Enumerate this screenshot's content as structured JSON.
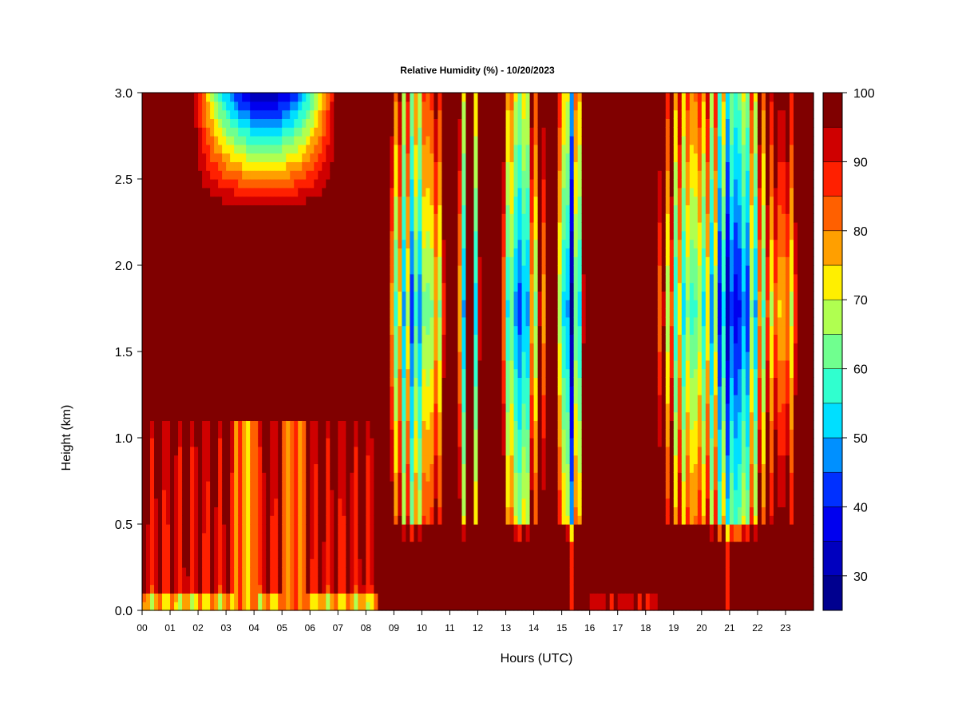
{
  "chart_data": {
    "type": "heatmap",
    "title": "Relative Humidity (%) - 10/20/2023",
    "xlabel": "Hours (UTC)",
    "ylabel": "Height (km)",
    "xlim": [
      0,
      24
    ],
    "ylim": [
      0,
      3.0
    ],
    "x_ticks": [
      0,
      1,
      2,
      3,
      4,
      5,
      6,
      7,
      8,
      9,
      10,
      11,
      12,
      13,
      14,
      15,
      16,
      17,
      18,
      19,
      20,
      21,
      22,
      23
    ],
    "x_tick_labels": [
      "00",
      "01",
      "02",
      "03",
      "04",
      "05",
      "06",
      "07",
      "08",
      "09",
      "10",
      "11",
      "12",
      "13",
      "14",
      "15",
      "16",
      "17",
      "18",
      "19",
      "20",
      "21",
      "22",
      "23"
    ],
    "y_ticks": [
      0.0,
      0.5,
      1.0,
      1.5,
      2.0,
      2.5,
      3.0
    ],
    "y_tick_labels": [
      "0.0",
      "0.5",
      "1.0",
      "1.5",
      "2.0",
      "2.5",
      "3.0"
    ],
    "colorbar": {
      "range": [
        25,
        100
      ],
      "tick_values": [
        30,
        40,
        50,
        60,
        70,
        80,
        90,
        100
      ],
      "tick_labels": [
        "30",
        "40",
        "50",
        "60",
        "70",
        "80",
        "90",
        "100"
      ],
      "levels": [
        {
          "min": 25,
          "max": 30,
          "color": "#00008f"
        },
        {
          "min": 30,
          "max": 35,
          "color": "#0000bf"
        },
        {
          "min": 35,
          "max": 40,
          "color": "#0000ef"
        },
        {
          "min": 40,
          "max": 45,
          "color": "#0030ff"
        },
        {
          "min": 45,
          "max": 50,
          "color": "#0090ff"
        },
        {
          "min": 50,
          "max": 55,
          "color": "#00dfff"
        },
        {
          "min": 55,
          "max": 60,
          "color": "#30ffcf"
        },
        {
          "min": 60,
          "max": 65,
          "color": "#70ff8f"
        },
        {
          "min": 65,
          "max": 70,
          "color": "#b0ff50"
        },
        {
          "min": 70,
          "max": 75,
          "color": "#ffef00"
        },
        {
          "min": 75,
          "max": 80,
          "color": "#ff9f00"
        },
        {
          "min": 80,
          "max": 85,
          "color": "#ff6000"
        },
        {
          "min": 85,
          "max": 90,
          "color": "#ff2000"
        },
        {
          "min": 90,
          "max": 95,
          "color": "#cf0000"
        },
        {
          "min": 95,
          "max": 100,
          "color": "#800000"
        }
      ]
    },
    "dry_periods_utc": [
      [
        8.8,
        10.8
      ],
      [
        11.3,
        11.6
      ],
      [
        11.8,
        12.1
      ],
      [
        12.8,
        14.4
      ],
      [
        14.8,
        15.9
      ],
      [
        18.4,
        23.4
      ]
    ],
    "moist_layers_km": {
      "surface_saturated_from_9utc": [
        0.0,
        0.4
      ],
      "early_upper_dry_layer": [
        2.3,
        3.0
      ],
      "early_boundary_layer": [
        0.0,
        1.1
      ]
    }
  }
}
